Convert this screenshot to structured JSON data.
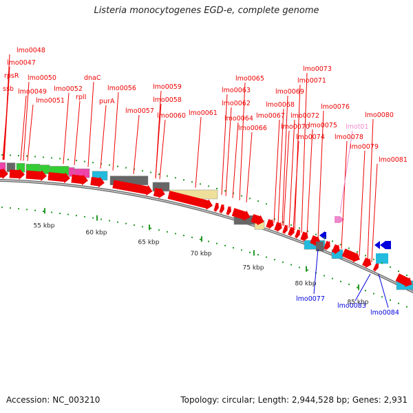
{
  "title": "Listeria monocytogenes EGD-e, complete genome",
  "footer": {
    "accession": "Accession: NC_003210",
    "summary": "Topology: circular; Length: 2,944,528 bp; Genes: 2,931"
  },
  "colors": {
    "forward_gene": "#ee0000",
    "reverse_gene": "#0000dd",
    "pseudo_gene": "#ee88cc",
    "backbone": "#888888",
    "tick": "#229922",
    "gray_block": "#666666",
    "tan_block": "#eee09a",
    "green_block": "#33cc33",
    "cyan_block": "#22bbdd",
    "magenta_block": "#ee44aa"
  },
  "scale": {
    "unit": "kbp",
    "labels": [
      "55 kbp",
      "60 kbp",
      "65 kbp",
      "70 kbp",
      "75 kbp",
      "80 kbp",
      "85 kbp"
    ]
  },
  "labels": {
    "forward": [
      "lmo0048",
      "lmo0047",
      "rpsR",
      "ssb",
      "lmo0050",
      "lmo0049",
      "lmo0051",
      "lmo0052",
      "rplI",
      "dnaC",
      "purA",
      "lmo0056",
      "lmo0057",
      "lmo0059",
      "lmo0058",
      "lmo0060",
      "lmo0061",
      "lmo0065",
      "lmo0063",
      "lmo0062",
      "lmo0064",
      "lmo0066",
      "lmo0073",
      "lmo0071",
      "lmo0069",
      "lmo0068",
      "lmo0067",
      "lmo0072",
      "lmo0070",
      "lmo0075",
      "lmo0074",
      "lmo0076",
      "lmo0078",
      "lmo0080",
      "lmo0079",
      "lmo0081"
    ],
    "pseudo": [
      "lmot01"
    ],
    "reverse": [
      "lmo0077",
      "lmo0083",
      "lmo0084"
    ]
  }
}
